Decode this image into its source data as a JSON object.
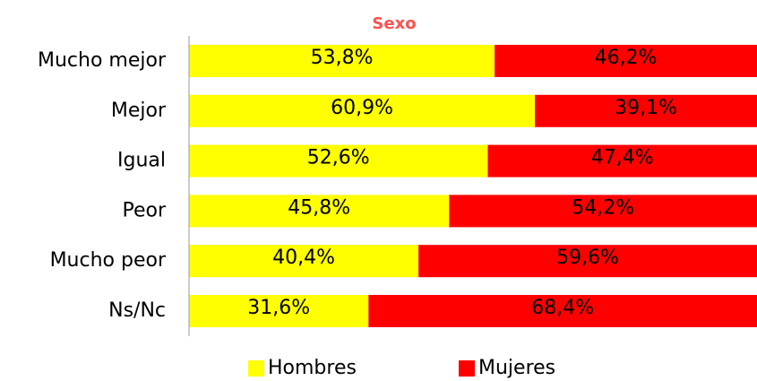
{
  "chart_data": {
    "type": "stacked_bar_horizontal",
    "title": "Sexo",
    "categories": [
      "Mucho mejor",
      "Mejor",
      "Igual",
      "Peor",
      "Mucho peor",
      "Ns/Nc"
    ],
    "series": [
      {
        "name": "Hombres",
        "color": "#ffff00",
        "values": [
          53.8,
          60.9,
          52.6,
          45.8,
          40.4,
          31.6
        ],
        "value_labels": [
          "53,8%",
          "60,9%",
          "52,6%",
          "45,8%",
          "40,4%",
          "31,6%"
        ]
      },
      {
        "name": "Mujeres",
        "color": "#ff0000",
        "values": [
          46.2,
          39.1,
          47.4,
          54.2,
          59.6,
          68.4
        ],
        "value_labels": [
          "46,2%",
          "39,1%",
          "47,4%",
          "54,2%",
          "59,6%",
          "68,4%"
        ]
      }
    ],
    "xlim": [
      0,
      100
    ],
    "legend": "bottom",
    "title_color": "#ff5050"
  }
}
